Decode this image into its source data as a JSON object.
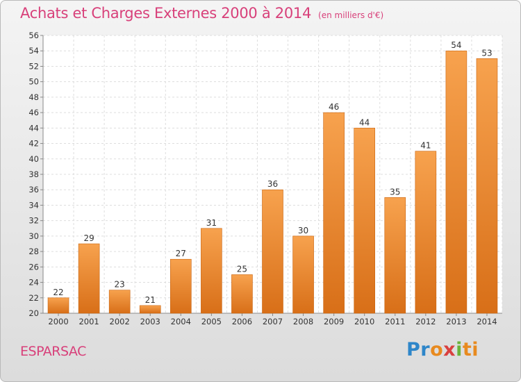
{
  "header": {
    "title": "Achats et Charges Externes 2000 à 2014",
    "subtitle": "(en milliers d'€)"
  },
  "footer": {
    "commune": "ESPARSAC",
    "brand": [
      "Pr",
      "o",
      "x",
      "i",
      "ti"
    ]
  },
  "colors": {
    "title": "#d8407a",
    "bar_light": "#f7a24e",
    "bar_dark": "#d86f18"
  },
  "chart_data": {
    "type": "bar",
    "title": "Achats et Charges Externes 2000 à 2014",
    "subtitle": "(en milliers d'€)",
    "categories": [
      "2000",
      "2001",
      "2002",
      "2003",
      "2004",
      "2005",
      "2006",
      "2007",
      "2008",
      "2009",
      "2010",
      "2011",
      "2012",
      "2013",
      "2014"
    ],
    "values": [
      22,
      29,
      23,
      21,
      27,
      31,
      25,
      36,
      30,
      46,
      44,
      35,
      41,
      54,
      53
    ],
    "xlabel": "",
    "ylabel": "",
    "ylim": [
      20,
      56
    ],
    "yticks": [
      20,
      22,
      24,
      26,
      28,
      30,
      32,
      34,
      36,
      38,
      40,
      42,
      44,
      46,
      48,
      50,
      52,
      54,
      56
    ],
    "grid": true,
    "data_labels": true
  }
}
